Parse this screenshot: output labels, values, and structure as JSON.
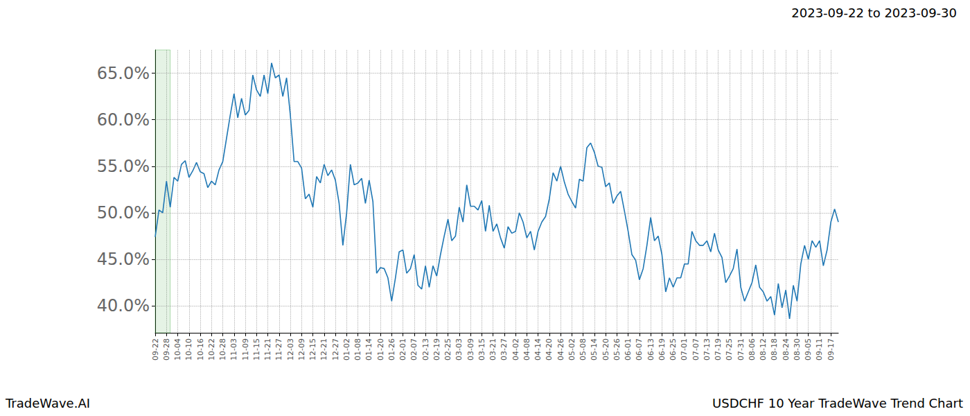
{
  "chart_data": {
    "type": "line",
    "title": "2023-09-22 to 2023-09-30",
    "footer_left": "TradeWave.AI",
    "footer_right": "USDCHF 10 Year TradeWave Trend Chart",
    "color": "#1f77b4",
    "grid": true,
    "highlight": {
      "start": 0,
      "end": 4
    },
    "categories": [
      "09-22",
      null,
      null,
      "09-28",
      null,
      null,
      "10-04",
      null,
      null,
      "10-10",
      null,
      null,
      "10-16",
      null,
      null,
      "10-22",
      null,
      null,
      "10-28",
      null,
      null,
      "11-03",
      null,
      null,
      "11-09",
      null,
      null,
      "11-15",
      null,
      null,
      "11-21",
      null,
      null,
      "11-27",
      null,
      null,
      "12-03",
      null,
      null,
      "12-09",
      null,
      null,
      "12-15",
      null,
      null,
      "12-21",
      null,
      null,
      "12-27",
      null,
      null,
      "01-02",
      null,
      null,
      "01-08",
      null,
      null,
      "01-14",
      null,
      null,
      "01-20",
      null,
      null,
      "01-26",
      null,
      null,
      "02-01",
      null,
      null,
      "02-07",
      null,
      null,
      "02-13",
      null,
      null,
      "02-19",
      null,
      null,
      "02-25",
      null,
      null,
      "03-03",
      null,
      null,
      "03-09",
      null,
      null,
      "03-15",
      null,
      null,
      "03-21",
      null,
      null,
      "03-27",
      null,
      null,
      "04-02",
      null,
      null,
      "04-08",
      null,
      null,
      "04-14",
      null,
      null,
      "04-20",
      null,
      null,
      "04-26",
      null,
      null,
      "05-02",
      null,
      null,
      "05-08",
      null,
      null,
      "05-14",
      null,
      null,
      "05-20",
      null,
      null,
      "05-26",
      null,
      null,
      "06-01",
      null,
      null,
      "06-07",
      null,
      null,
      "06-13",
      null,
      null,
      "06-19",
      null,
      null,
      "06-25",
      null,
      null,
      "07-01",
      null,
      null,
      "07-07",
      null,
      null,
      "07-13",
      null,
      null,
      "07-19",
      null,
      null,
      "07-25",
      null,
      null,
      "07-31",
      null,
      null,
      "08-06",
      null,
      null,
      "08-12",
      null,
      null,
      "08-18",
      null,
      null,
      "08-24",
      null,
      null,
      "08-30",
      null,
      null,
      "09-05",
      null,
      null,
      "09-11",
      null,
      null,
      "09-17",
      null,
      null
    ],
    "values": [
      47.4,
      50.3,
      50.0,
      53.4,
      50.6,
      53.8,
      53.4,
      55.2,
      55.6,
      53.8,
      54.5,
      55.4,
      54.4,
      54.2,
      52.7,
      53.4,
      53.0,
      54.6,
      55.5,
      58.0,
      60.5,
      62.8,
      60.2,
      62.3,
      60.5,
      61.0,
      64.8,
      63.2,
      62.5,
      64.8,
      62.8,
      66.1,
      64.5,
      64.8,
      62.5,
      64.5,
      60.5,
      55.5,
      55.5,
      54.8,
      51.5,
      52.0,
      50.6,
      53.9,
      53.2,
      55.2,
      54.0,
      54.6,
      53.5,
      51.0,
      46.5,
      50.0,
      55.2,
      53.0,
      53.2,
      53.7,
      51.0,
      53.5,
      51.2,
      43.5,
      44.1,
      44.0,
      43.0,
      40.5,
      43.0,
      45.8,
      46.0,
      43.5,
      44.0,
      45.5,
      42.2,
      41.8,
      44.3,
      42.0,
      44.3,
      43.2,
      45.5,
      47.5,
      49.3,
      47.0,
      47.5,
      50.6,
      49.0,
      53.0,
      50.7,
      50.7,
      50.3,
      51.3,
      48.0,
      50.8,
      48.0,
      48.8,
      47.3,
      46.2,
      48.5,
      47.8,
      48.0,
      50.0,
      49.0,
      47.3,
      48.0,
      46.0,
      48.0,
      49.0,
      49.6,
      51.5,
      54.3,
      53.4,
      55.0,
      53.3,
      52.0,
      51.2,
      50.5,
      53.6,
      53.4,
      57.0,
      57.5,
      56.5,
      55.0,
      54.9,
      52.8,
      53.2,
      51.0,
      51.8,
      52.3,
      50.2,
      48.0,
      45.5,
      44.9,
      42.8,
      44.0,
      46.5,
      49.5,
      47.0,
      47.5,
      45.5,
      41.5,
      43.0,
      42.0,
      43.0,
      43.0,
      44.5,
      44.5,
      48.0,
      47.0,
      46.5,
      46.5,
      47.0,
      45.8,
      47.8,
      46.0,
      45.2,
      42.5,
      43.2,
      44.0,
      46.1,
      42.0,
      40.5,
      41.5,
      42.5,
      44.4,
      42.0,
      41.5,
      40.5,
      41.0,
      39.0,
      42.4,
      39.8,
      41.7,
      38.6,
      42.2,
      40.5,
      44.5,
      46.5,
      45.0,
      47.0,
      46.3,
      47.0,
      44.3,
      46.0,
      49.0,
      50.4,
      49.0
    ],
    "ylim": [
      37.1,
      67.5
    ],
    "yticks": [
      {
        "value": 40,
        "label": "40.0%"
      },
      {
        "value": 45,
        "label": "45.0%"
      },
      {
        "value": 50,
        "label": "50.0%"
      },
      {
        "value": 55,
        "label": "55.0%"
      },
      {
        "value": 60,
        "label": "60.0%"
      },
      {
        "value": 65,
        "label": "65.0%"
      }
    ]
  }
}
